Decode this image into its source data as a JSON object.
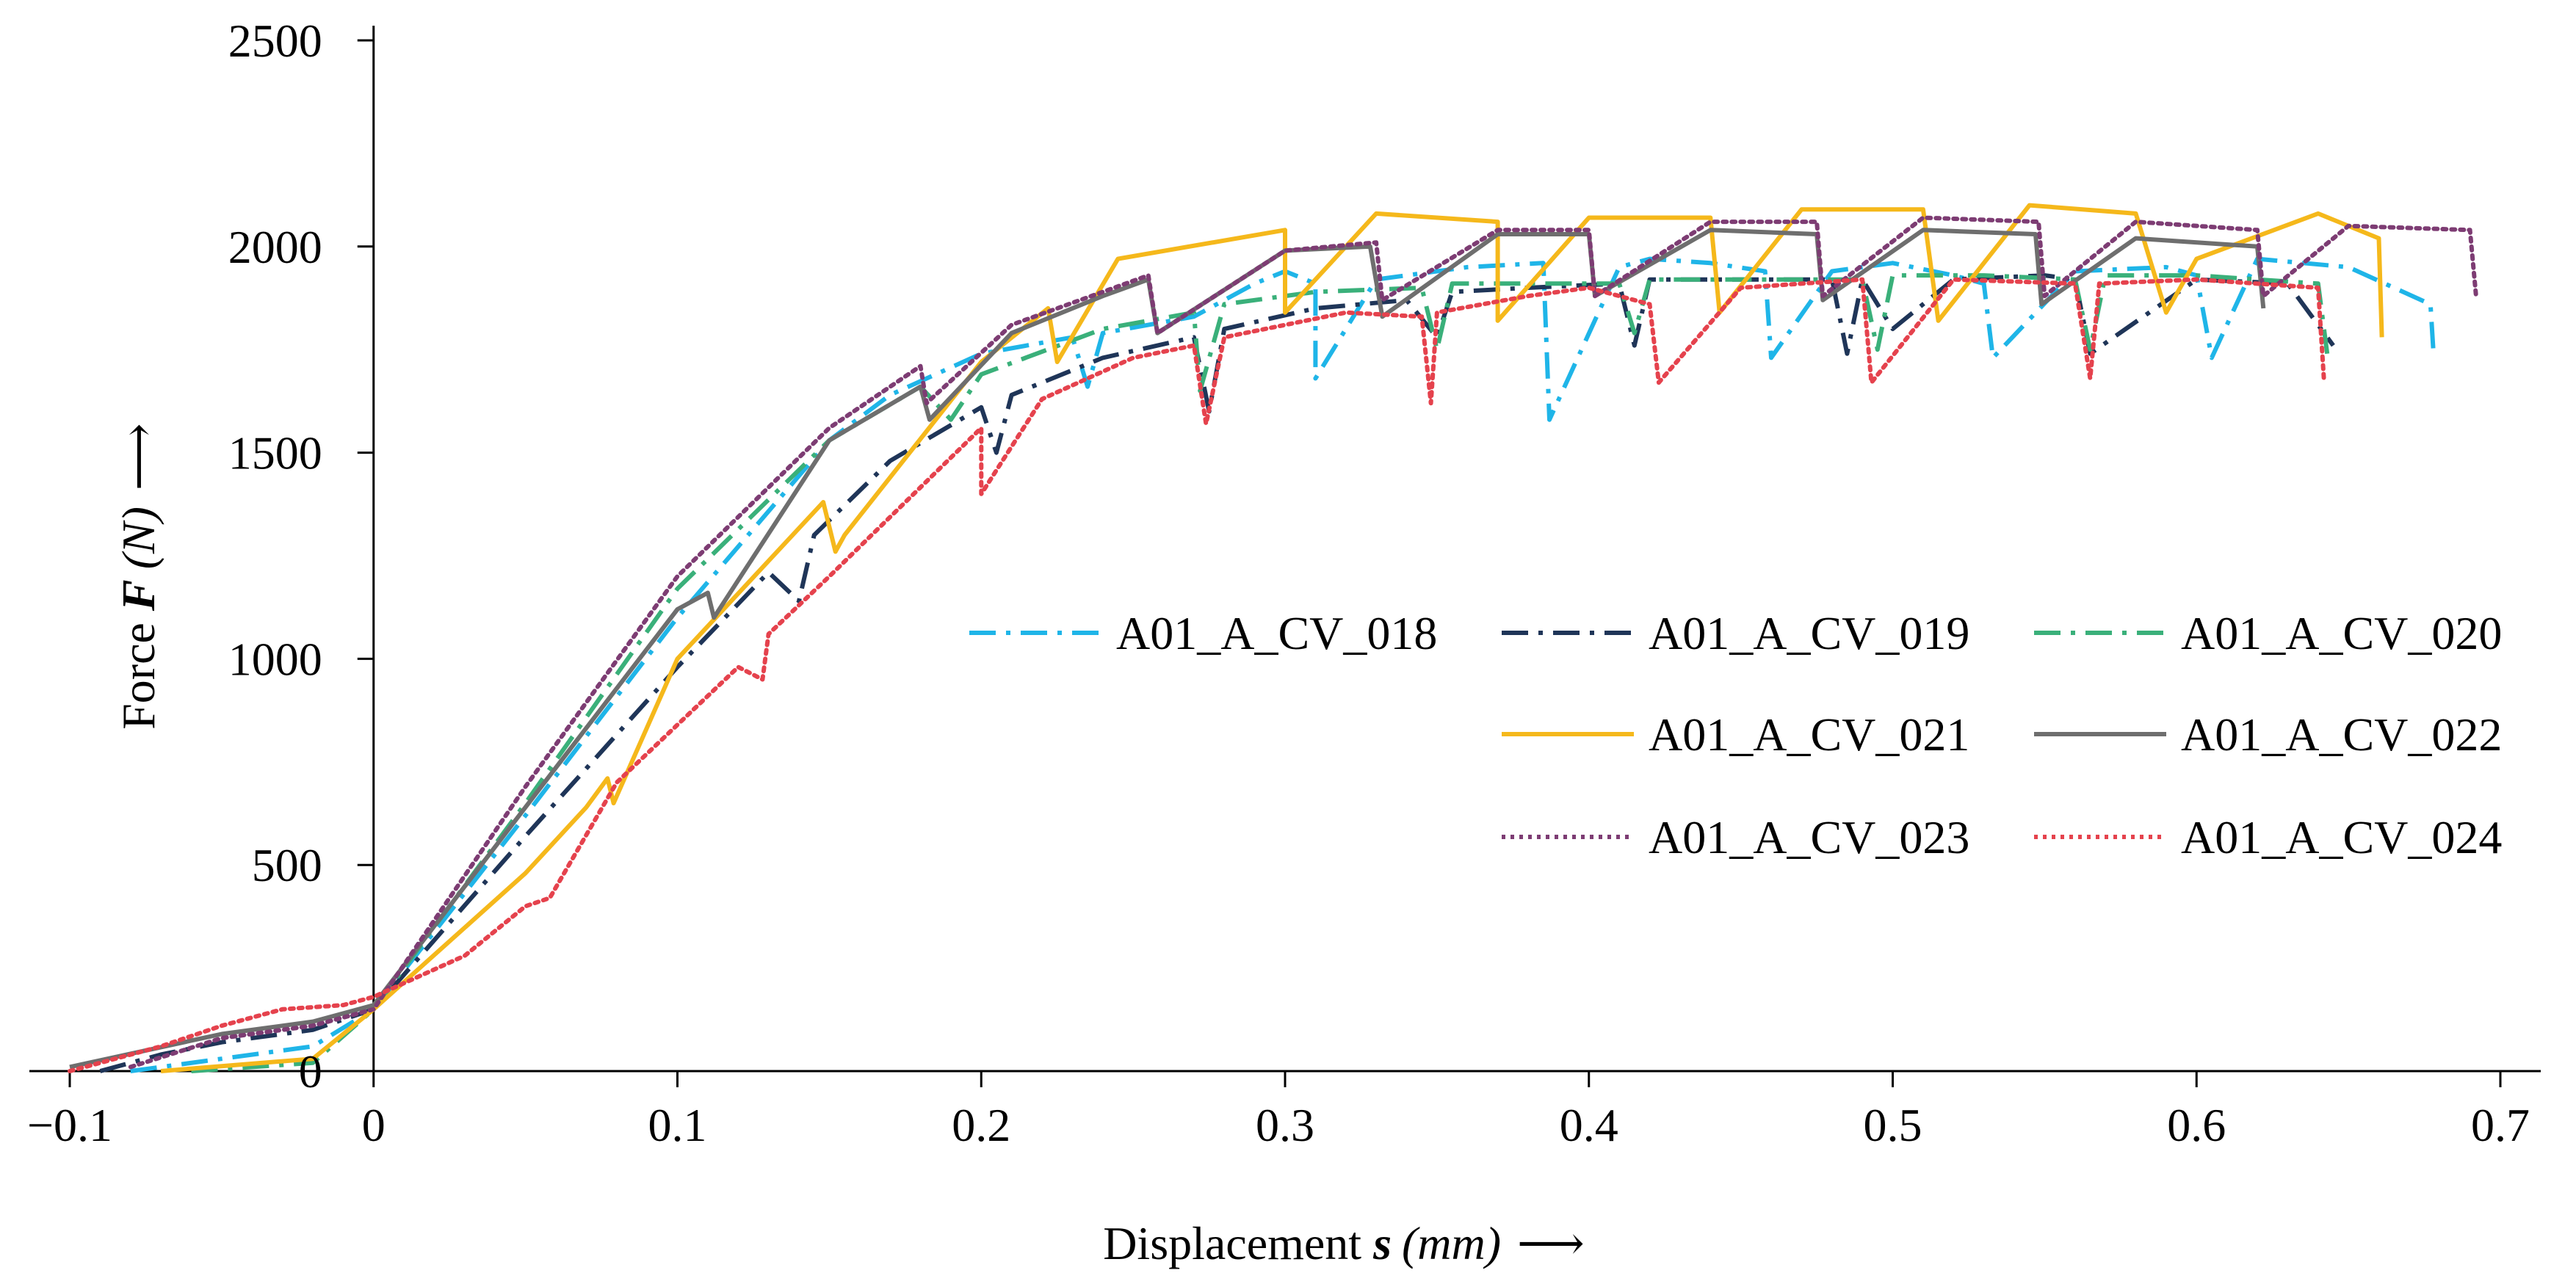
{
  "chart_data": {
    "type": "line",
    "title": "",
    "xlabel": {
      "prefix": "Displacement ",
      "symbol": "s",
      "unit": "(mm)",
      "arrow": "⟶"
    },
    "ylabel": {
      "prefix": "Force ",
      "symbol": "F",
      "unit": "(N)",
      "arrow": "⟶"
    },
    "xlim": [
      -0.1,
      0.7
    ],
    "ylim": [
      0,
      2500
    ],
    "xticks": [
      "−0.1",
      "0",
      "0.1",
      "0.2",
      "0.3",
      "0.4",
      "0.5",
      "0.6",
      "0.7"
    ],
    "xtick_values": [
      -0.1,
      0,
      0.1,
      0.2,
      0.3,
      0.4,
      0.5,
      0.6,
      0.7
    ],
    "yticks": [
      "0",
      "500",
      "1000",
      "1500",
      "2000",
      "2500"
    ],
    "ytick_values": [
      0,
      500,
      1000,
      1500,
      2000,
      2500
    ],
    "grid": false,
    "legend_position": "center-right",
    "series": [
      {
        "name": "A01_A_CV_018",
        "color": "#1fb5e8",
        "dash": "dashdot",
        "x": [
          -0.08,
          -0.05,
          -0.02,
          0,
          0.05,
          0.1,
          0.15,
          0.17,
          0.2,
          0.23,
          0.235,
          0.24,
          0.27,
          0.29,
          0.3,
          0.31,
          0.31,
          0.33,
          0.36,
          0.385,
          0.387,
          0.41,
          0.42,
          0.44,
          0.458,
          0.46,
          0.48,
          0.5,
          0.52,
          0.53,
          0.533,
          0.56,
          0.59,
          0.6,
          0.605,
          0.62,
          0.65,
          0.677,
          0.678
        ],
        "y": [
          0,
          30,
          60,
          150,
          620,
          1100,
          1530,
          1640,
          1740,
          1780,
          1660,
          1790,
          1830,
          1910,
          1940,
          1910,
          1680,
          1920,
          1950,
          1960,
          1580,
          1950,
          1970,
          1960,
          1940,
          1730,
          1940,
          1960,
          1930,
          1910,
          1730,
          1940,
          1950,
          1930,
          1730,
          1970,
          1950,
          1860,
          1740
        ]
      },
      {
        "name": "A01_A_CV_019",
        "color": "#1f3558",
        "dash": "dashdot",
        "x": [
          -0.09,
          -0.07,
          -0.05,
          -0.02,
          0,
          0.05,
          0.1,
          0.13,
          0.14,
          0.145,
          0.17,
          0.2,
          0.205,
          0.21,
          0.24,
          0.27,
          0.275,
          0.28,
          0.31,
          0.34,
          0.35,
          0.355,
          0.38,
          0.41,
          0.415,
          0.42,
          0.45,
          0.48,
          0.485,
          0.49,
          0.5,
          0.52,
          0.55,
          0.56,
          0.565,
          0.6,
          0.63,
          0.645
        ],
        "y": [
          0,
          40,
          70,
          100,
          150,
          570,
          980,
          1210,
          1140,
          1300,
          1480,
          1610,
          1500,
          1640,
          1730,
          1780,
          1600,
          1800,
          1850,
          1870,
          1780,
          1890,
          1900,
          1910,
          1760,
          1920,
          1920,
          1920,
          1740,
          1920,
          1800,
          1920,
          1930,
          1920,
          1740,
          1920,
          1910,
          1760
        ]
      },
      {
        "name": "A01_A_CV_020",
        "color": "#3ab07a",
        "dash": "dashdot",
        "x": [
          -0.06,
          -0.02,
          0,
          0.05,
          0.1,
          0.15,
          0.18,
          0.19,
          0.2,
          0.24,
          0.27,
          0.272,
          0.28,
          0.31,
          0.345,
          0.35,
          0.355,
          0.38,
          0.41,
          0.415,
          0.42,
          0.45,
          0.49,
          0.495,
          0.5,
          0.53,
          0.56,
          0.565,
          0.57,
          0.6,
          0.64,
          0.643
        ],
        "y": [
          0,
          20,
          150,
          650,
          1170,
          1530,
          1660,
          1580,
          1690,
          1800,
          1840,
          1650,
          1860,
          1890,
          1900,
          1750,
          1910,
          1910,
          1910,
          1790,
          1920,
          1920,
          1920,
          1750,
          1930,
          1930,
          1920,
          1750,
          1930,
          1930,
          1910,
          1740
        ]
      },
      {
        "name": "A01_A_CV_021",
        "color": "#f5b81b",
        "dash": "solid",
        "x": [
          -0.07,
          -0.02,
          0,
          0.05,
          0.07,
          0.077,
          0.079,
          0.1,
          0.148,
          0.152,
          0.155,
          0.2,
          0.222,
          0.225,
          0.245,
          0.3,
          0.3,
          0.33,
          0.37,
          0.37,
          0.4,
          0.44,
          0.443,
          0.47,
          0.51,
          0.515,
          0.545,
          0.58,
          0.59,
          0.6,
          0.64,
          0.66,
          0.661
        ],
        "y": [
          0,
          30,
          150,
          480,
          640,
          710,
          650,
          1000,
          1380,
          1260,
          1300,
          1720,
          1850,
          1720,
          1970,
          2040,
          1840,
          2080,
          2060,
          1820,
          2070,
          2070,
          1840,
          2090,
          2090,
          1820,
          2100,
          2080,
          1840,
          1970,
          2080,
          2020,
          1780
        ]
      },
      {
        "name": "A01_A_CV_022",
        "color": "#6e6e6e",
        "dash": "solid",
        "x": [
          -0.1,
          -0.075,
          -0.05,
          -0.02,
          0,
          0.05,
          0.1,
          0.11,
          0.112,
          0.15,
          0.18,
          0.183,
          0.21,
          0.24,
          0.255,
          0.258,
          0.3,
          0.328,
          0.332,
          0.37,
          0.4,
          0.402,
          0.44,
          0.475,
          0.477,
          0.51,
          0.547,
          0.549,
          0.58,
          0.62,
          0.622
        ],
        "y": [
          10,
          50,
          90,
          120,
          160,
          640,
          1120,
          1160,
          1100,
          1530,
          1660,
          1580,
          1790,
          1880,
          1920,
          1790,
          1990,
          2000,
          1830,
          2030,
          2030,
          1880,
          2040,
          2030,
          1870,
          2040,
          2030,
          1860,
          2020,
          2000,
          1850
        ]
      },
      {
        "name": "A01_A_CV_023",
        "color": "#7d3c73",
        "dash": "dotted",
        "x": [
          -0.08,
          -0.05,
          -0.02,
          0,
          0.05,
          0.1,
          0.15,
          0.18,
          0.182,
          0.21,
          0.24,
          0.255,
          0.258,
          0.3,
          0.33,
          0.332,
          0.37,
          0.4,
          0.402,
          0.44,
          0.475,
          0.477,
          0.51,
          0.548,
          0.55,
          0.58,
          0.62,
          0.622,
          0.65,
          0.69,
          0.692
        ],
        "y": [
          10,
          80,
          110,
          150,
          690,
          1200,
          1560,
          1710,
          1620,
          1810,
          1890,
          1930,
          1790,
          1990,
          2010,
          1870,
          2040,
          2040,
          1880,
          2060,
          2060,
          1880,
          2070,
          2060,
          1880,
          2060,
          2040,
          1880,
          2050,
          2040,
          1880
        ]
      },
      {
        "name": "A01_A_CV_024",
        "color": "#e5424d",
        "dash": "dotted",
        "x": [
          -0.1,
          -0.07,
          -0.05,
          -0.03,
          -0.01,
          0,
          0.03,
          0.05,
          0.058,
          0.08,
          0.12,
          0.128,
          0.13,
          0.15,
          0.2,
          0.2,
          0.22,
          0.25,
          0.27,
          0.274,
          0.28,
          0.32,
          0.345,
          0.348,
          0.35,
          0.38,
          0.4,
          0.42,
          0.423,
          0.45,
          0.49,
          0.493,
          0.52,
          0.56,
          0.565,
          0.568,
          0.6,
          0.64,
          0.642
        ],
        "y": [
          0,
          60,
          110,
          150,
          160,
          180,
          280,
          400,
          420,
          700,
          980,
          950,
          1060,
          1200,
          1560,
          1400,
          1630,
          1730,
          1760,
          1570,
          1780,
          1840,
          1830,
          1620,
          1840,
          1880,
          1900,
          1860,
          1670,
          1900,
          1920,
          1670,
          1920,
          1910,
          1680,
          1910,
          1920,
          1900,
          1670
        ]
      }
    ]
  }
}
